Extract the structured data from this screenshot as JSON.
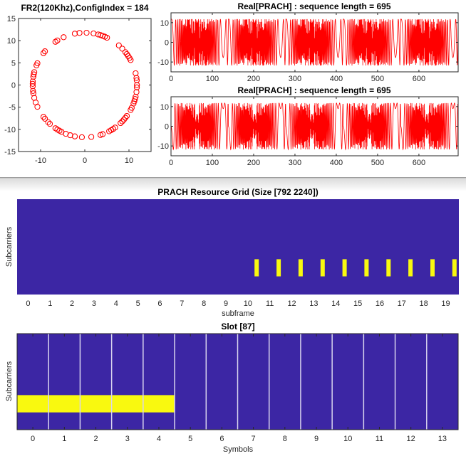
{
  "colors": {
    "red": "#ff0000",
    "grid_bg": "#3c26a4",
    "grid_on": "#f9f90f",
    "slot_line": "#d8d4ee",
    "axis": "#262626"
  },
  "chart_data": [
    {
      "id": "constellation",
      "type": "scatter",
      "title": "FR2(120Khz),ConfigIndex = 184",
      "xlabel": "",
      "ylabel": "",
      "xlim": [
        -15,
        15
      ],
      "ylim": [
        -15,
        15
      ],
      "xticks": [
        -10,
        0,
        10
      ],
      "yticks": [
        15,
        10,
        5,
        0,
        -5,
        -10,
        -15
      ],
      "marker": "circle-open",
      "radius_approx": 11.8,
      "points_count": 139,
      "description_values": "points on circle of radius ~11.8 (ZC sequence constellation)"
    },
    {
      "id": "real-prach-1",
      "type": "line",
      "title": "Real[PRACH] : sequence length = 695",
      "xlim": [
        0,
        695
      ],
      "ylim": [
        -15,
        15
      ],
      "xticks": [
        0,
        100,
        200,
        300,
        400,
        500,
        600
      ],
      "yticks": [
        10,
        0,
        -10
      ],
      "amplitude": 11.8,
      "sequence_length": 695,
      "phase": 0
    },
    {
      "id": "real-prach-2",
      "type": "line",
      "title": "Real[PRACH] : sequence length = 695",
      "xlim": [
        0,
        695
      ],
      "ylim": [
        -15,
        15
      ],
      "xticks": [
        0,
        100,
        200,
        300,
        400,
        500,
        600
      ],
      "yticks": [
        10,
        0,
        -10
      ],
      "amplitude": 11.8,
      "sequence_length": 695,
      "phase": 1
    },
    {
      "id": "resource-grid",
      "type": "heatmap",
      "title": "PRACH Resource Grid (Size [792 2240])",
      "xlabel": "subframe",
      "ylabel": "Subcarriers",
      "xlim": [
        -0.5,
        19.6
      ],
      "xticks": [
        "0",
        "1",
        "2",
        "3",
        "4",
        "5",
        "6",
        "7",
        "8",
        "9",
        "10",
        "11",
        "12",
        "13",
        "14",
        "15",
        "16",
        "17",
        "18",
        "19"
      ],
      "active_subframes": [
        10.4,
        11.4,
        12.4,
        13.4,
        14.4,
        15.4,
        16.4,
        17.4,
        18.4,
        19.4
      ],
      "active_band": [
        0.63,
        0.81
      ]
    },
    {
      "id": "slot-grid",
      "type": "heatmap",
      "title": "Slot [87]",
      "xlabel": "Symbols",
      "ylabel": "Subcarriers",
      "xlim": [
        -0.5,
        13.5
      ],
      "xticks": [
        "0",
        "1",
        "2",
        "3",
        "4",
        "5",
        "6",
        "7",
        "8",
        "9",
        "10",
        "11",
        "12",
        "13"
      ],
      "active_symbols": [
        0,
        1,
        2,
        3,
        4
      ],
      "active_band": [
        0.64,
        0.82
      ]
    }
  ]
}
